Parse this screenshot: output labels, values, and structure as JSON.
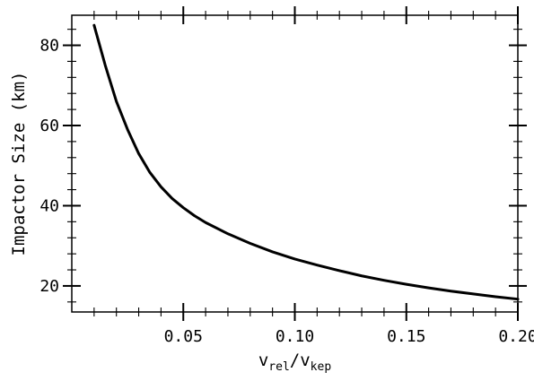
{
  "chart_data": {
    "type": "line",
    "xlabel": {
      "main1": "v",
      "sub1": "rel",
      "sep": "/v",
      "sub2": "kep"
    },
    "ylabel": "Impactor Size (km)",
    "xlim": [
      0.0,
      0.2
    ],
    "ylim": [
      13.5,
      87.5
    ],
    "x_ticks": [
      0.05,
      0.1,
      0.15,
      0.2
    ],
    "x_tick_labels": [
      "0.05",
      "0.10",
      "0.15",
      "0.20"
    ],
    "y_ticks": [
      20,
      40,
      60,
      80
    ],
    "y_tick_labels": [
      "20",
      "40",
      "60",
      "80"
    ],
    "grid": false,
    "series": [
      {
        "color": "#000000",
        "x": [
          0.01,
          0.015,
          0.02,
          0.025,
          0.03,
          0.035,
          0.04,
          0.045,
          0.05,
          0.055,
          0.06,
          0.07,
          0.08,
          0.09,
          0.1,
          0.11,
          0.12,
          0.13,
          0.14,
          0.15,
          0.16,
          0.17,
          0.18,
          0.19,
          0.2
        ],
        "y": [
          85,
          75,
          66,
          59,
          53,
          48.3,
          44.7,
          41.8,
          39.5,
          37.5,
          35.8,
          33.0,
          30.6,
          28.5,
          26.7,
          25.2,
          23.8,
          22.5,
          21.4,
          20.4,
          19.5,
          18.7,
          18.0,
          17.3,
          16.7
        ]
      }
    ]
  }
}
